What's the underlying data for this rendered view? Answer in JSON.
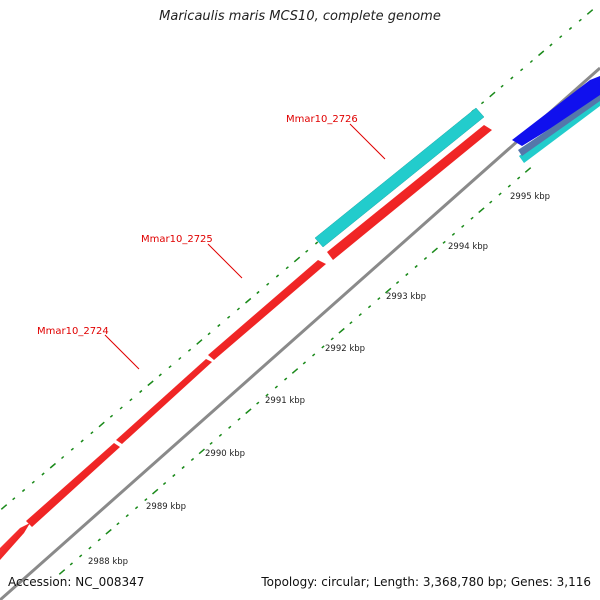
{
  "title": "Maricaulis maris MCS10, complete genome",
  "footer": {
    "accession_label": "Accession:",
    "accession": "NC_008347",
    "topology_label": "Topology:",
    "topology": "circular",
    "length_label": "Length:",
    "length": "3,368,780 bp",
    "genes_label": "Genes:",
    "genes": "3,116"
  },
  "scale_labels": [
    "2988 kbp",
    "2989 kbp",
    "2990 kbp",
    "2991 kbp",
    "2992 kbp",
    "2993 kbp",
    "2994 kbp",
    "2995 kbp"
  ],
  "gene_labels": [
    "Mmar10_2724",
    "Mmar10_2725",
    "Mmar10_2726"
  ],
  "colors": {
    "forward_gene": "#ff1a1a",
    "cds_feature": "#22cccc",
    "other_gene": "#1010ee",
    "other_gene_dark": "#5577aa",
    "backbone": "#8a8a8a",
    "tick": "#1a8a1a",
    "label_line": "#e00000"
  }
}
